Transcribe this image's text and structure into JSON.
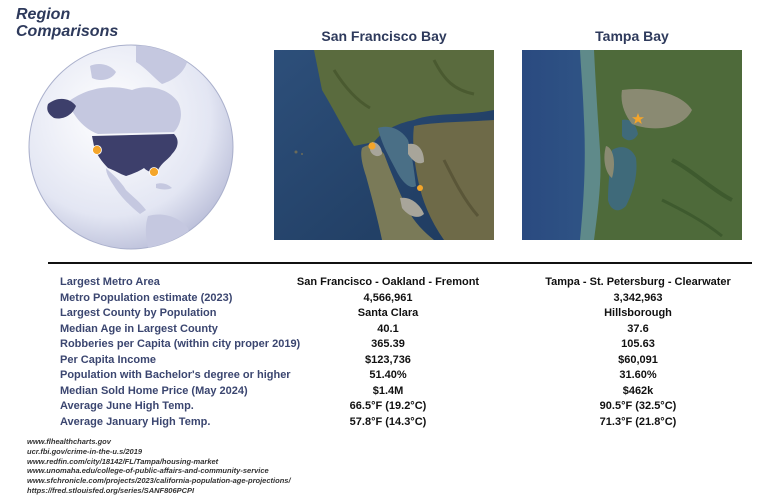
{
  "title": {
    "line1": "Region",
    "line2": "Comparisons"
  },
  "regions": [
    {
      "name": "San Francisco Bay"
    },
    {
      "name": "Tampa Bay"
    }
  ],
  "table": {
    "rows": [
      {
        "label": "Largest Metro Area",
        "sf": "San Francisco - Oakland - Fremont",
        "tampa": "Tampa - St. Petersburg - Clearwater"
      },
      {
        "label": "Metro Population estimate (2023)",
        "sf": "4,566,961",
        "tampa": "3,342,963"
      },
      {
        "label": "Largest County by Population",
        "sf": "Santa Clara",
        "tampa": "Hillsborough"
      },
      {
        "label": "Median Age in Largest County",
        "sf": "40.1",
        "tampa": "37.6"
      },
      {
        "label": "Robberies per Capita (within city proper 2019)",
        "sf": "365.39",
        "tampa": "105.63"
      },
      {
        "label": "Per Capita Income",
        "sf": "$123,736",
        "tampa": "$60,091"
      },
      {
        "label": "Population with Bachelor's degree or higher",
        "sf": "51.40%",
        "tampa": "31.60%"
      },
      {
        "label": "Median Sold Home Price (May 2024)",
        "sf": "$1.4M",
        "tampa": "$462k"
      },
      {
        "label": "Average June High Temp.",
        "sf": "66.5°F (19.2°C)",
        "tampa": "90.5°F (32.5°C)"
      },
      {
        "label": "Average January High Temp.",
        "sf": "57.8°F (14.3°C)",
        "tampa": "71.3°F (21.8°C)"
      }
    ]
  },
  "sources": [
    "www.flhealthcharts.gov",
    "ucr.fbi.gov/crime-in-the-u.s/2019",
    "www.redfin.com/city/18142/FL/Tampa/housing-market",
    "www.unomaha.edu/college-of-public-affairs-and-community-service",
    "www.sfchronicle.com/projects/2023/california-population-age-projections/",
    "https://fred.stlouisfed.org/series/SANF806PCPI"
  ],
  "colors": {
    "title": "#2e3a5c",
    "globe_land": "#3d3f6b",
    "globe_ocean": "#dde0f0",
    "marker": "#f4a52a"
  },
  "icons": {
    "marker": "location-marker-icon"
  }
}
